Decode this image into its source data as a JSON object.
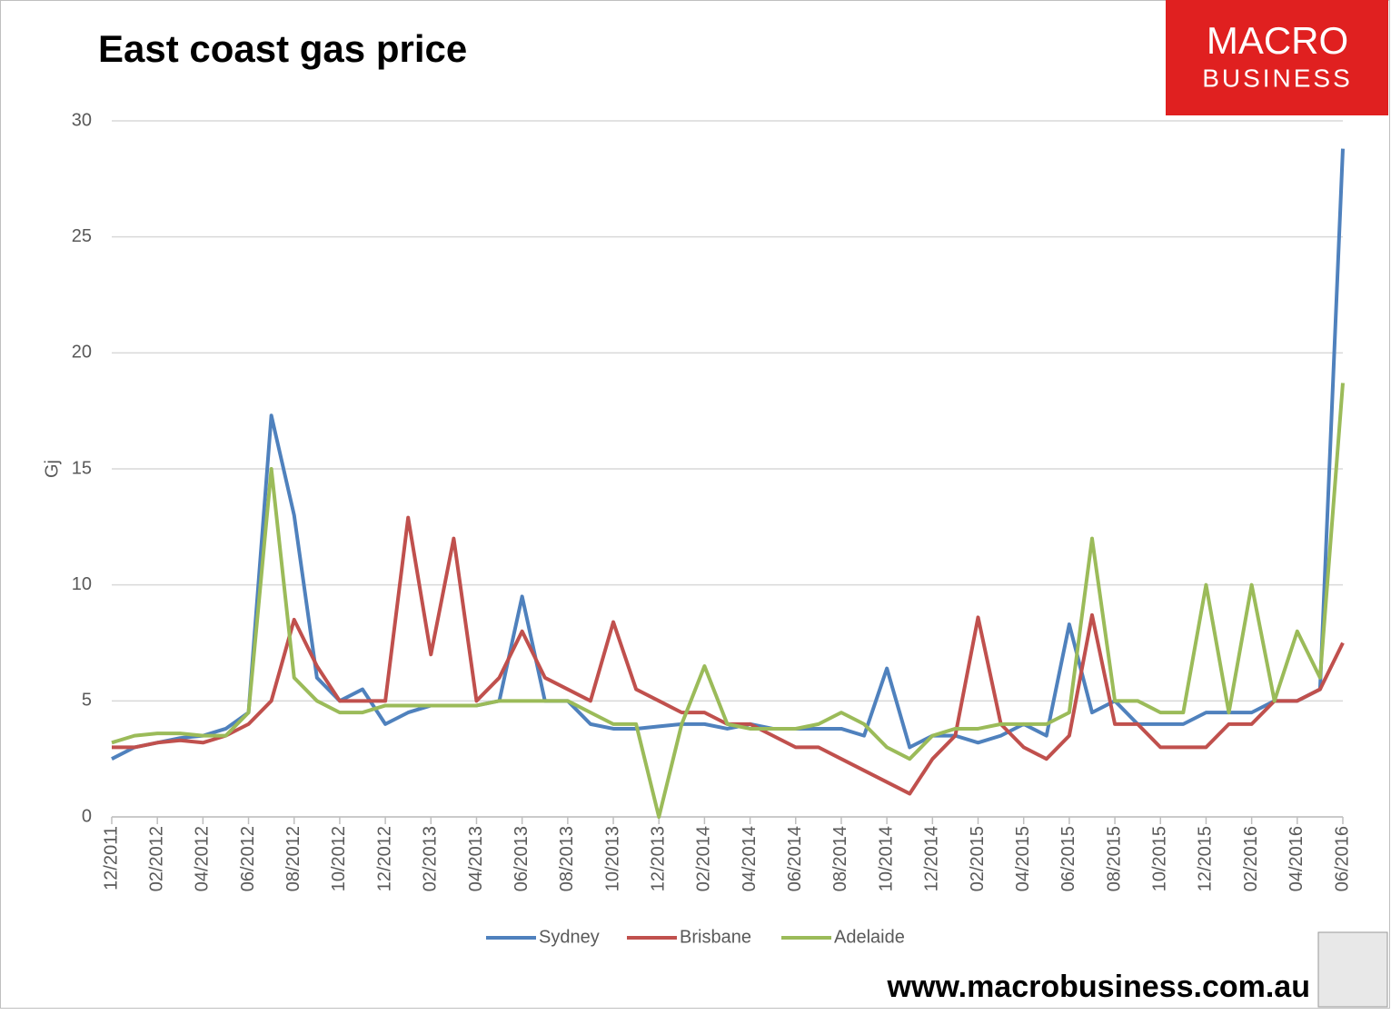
{
  "chart_data": {
    "type": "line",
    "title": "East coast gas price",
    "y_label": "Gj",
    "categories": [
      "12/2011",
      null,
      "02/2012",
      null,
      "04/2012",
      null,
      "06/2012",
      null,
      "08/2012",
      null,
      "10/2012",
      null,
      "12/2012",
      null,
      "02/2013",
      null,
      "04/2013",
      null,
      "06/2013",
      null,
      "08/2013",
      null,
      "10/2013",
      null,
      "12/2013",
      null,
      "02/2014",
      null,
      "04/2014",
      null,
      "06/2014",
      null,
      "08/2014",
      null,
      "10/2014",
      null,
      "12/2014",
      null,
      "02/2015",
      null,
      "04/2015",
      null,
      "06/2015",
      null,
      "08/2015",
      null,
      "10/2015",
      null,
      "12/2015",
      null,
      "02/2016",
      null,
      "04/2016",
      null,
      "06/2016"
    ],
    "series": [
      {
        "name": "Sydney",
        "color": "#4f81bd",
        "values": [
          2.5,
          3.0,
          3.2,
          3.4,
          3.5,
          3.8,
          4.5,
          17.3,
          13.0,
          6.0,
          5.0,
          5.5,
          4.0,
          4.5,
          4.8,
          4.8,
          4.8,
          5.0,
          9.5,
          5.0,
          5.0,
          4.0,
          3.8,
          3.8,
          3.9,
          4.0,
          4.0,
          3.8,
          4.0,
          3.8,
          3.8,
          3.8,
          3.8,
          3.5,
          6.4,
          3.0,
          3.5,
          3.5,
          3.2,
          3.5,
          4.0,
          3.5,
          8.3,
          4.5,
          5.0,
          4.0,
          4.0,
          4.0,
          4.5,
          4.5,
          4.5,
          5.0,
          5.0,
          5.5,
          28.8
        ]
      },
      {
        "name": "Brisbane",
        "color": "#c0504d",
        "values": [
          3.0,
          3.0,
          3.2,
          3.3,
          3.2,
          3.5,
          4.0,
          5.0,
          8.5,
          6.5,
          5.0,
          5.0,
          5.0,
          12.9,
          7.0,
          12.0,
          5.0,
          6.0,
          8.0,
          6.0,
          5.5,
          5.0,
          8.4,
          5.5,
          5.0,
          4.5,
          4.5,
          4.0,
          4.0,
          3.5,
          3.0,
          3.0,
          2.5,
          2.0,
          1.5,
          1.0,
          2.5,
          3.5,
          8.6,
          4.0,
          3.0,
          2.5,
          3.5,
          8.7,
          4.0,
          4.0,
          3.0,
          3.0,
          3.0,
          4.0,
          4.0,
          5.0,
          5.0,
          5.5,
          7.5
        ]
      },
      {
        "name": "Adelaide",
        "color": "#9bbb59",
        "values": [
          3.2,
          3.5,
          3.6,
          3.6,
          3.5,
          3.5,
          4.5,
          15.0,
          6.0,
          5.0,
          4.5,
          4.5,
          4.8,
          4.8,
          4.8,
          4.8,
          4.8,
          5.0,
          5.0,
          5.0,
          5.0,
          4.5,
          4.0,
          4.0,
          0.0,
          4.0,
          6.5,
          4.0,
          3.8,
          3.8,
          3.8,
          4.0,
          4.5,
          4.0,
          3.0,
          2.5,
          3.5,
          3.8,
          3.8,
          4.0,
          4.0,
          4.0,
          4.5,
          12.0,
          5.0,
          5.0,
          4.5,
          4.5,
          10.0,
          4.5,
          10.0,
          5.0,
          8.0,
          6.0,
          18.7
        ]
      }
    ],
    "ylim": [
      0,
      30
    ],
    "yticks": [
      0,
      5,
      10,
      15,
      20,
      25,
      30
    ],
    "grid": true,
    "legend": "bottom"
  },
  "logo": {
    "line1": "MACRO",
    "line2": "BUSINESS"
  },
  "footer": "www.macrobusiness.com.au"
}
